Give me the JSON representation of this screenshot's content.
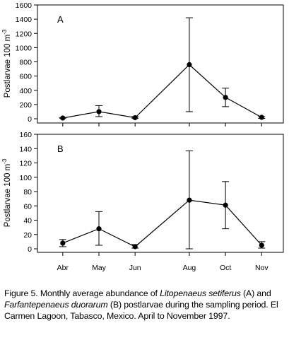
{
  "chart_data": [
    {
      "type": "line",
      "panel_label": "A",
      "ylabel_text": "Postlarvae 100 m",
      "ylabel_sup": "-3",
      "categories": [
        "Abr",
        "May",
        "Jun",
        "Aug",
        "Oct",
        "Nov"
      ],
      "x": [
        0,
        1,
        2,
        3.5,
        4.5,
        5.5
      ],
      "values": [
        10,
        100,
        15,
        760,
        300,
        20
      ],
      "error_low": [
        8,
        30,
        8,
        100,
        170,
        5
      ],
      "error_high": [
        15,
        185,
        30,
        1420,
        430,
        30
      ],
      "ylim": [
        0,
        1600
      ],
      "yticks": [
        0,
        200,
        400,
        600,
        800,
        1000,
        1200,
        1400,
        1600
      ],
      "xlim": [
        -0.7,
        6.1
      ],
      "show_xtick_labels": false,
      "grid": false
    },
    {
      "type": "line",
      "panel_label": "B",
      "ylabel_text": "Postlarvae 100 m",
      "ylabel_sup": "-3",
      "categories": [
        "Abr",
        "May",
        "Jun",
        "Aug",
        "Oct",
        "Nov"
      ],
      "x": [
        0,
        1,
        2,
        3.5,
        4.5,
        5.5
      ],
      "values": [
        8,
        28,
        3,
        68,
        61,
        5
      ],
      "error_low": [
        3,
        5,
        1,
        0,
        28,
        1
      ],
      "error_high": [
        13,
        52,
        6,
        137,
        94,
        10
      ],
      "ylim": [
        0,
        160
      ],
      "yticks": [
        0,
        20,
        40,
        60,
        80,
        100,
        120,
        140,
        160
      ],
      "xlim": [
        -0.7,
        6.1
      ],
      "show_xtick_labels": true,
      "grid": false
    }
  ],
  "caption": {
    "p1": "Figure 5. Monthly average abundance of ",
    "sp1": "Litopenaeus setiferus",
    "p2": " (A) and ",
    "sp2": "Farfantepenaeus duorarum",
    "p3": " (B) postlarvae during the sampling period. El Carmen Lagoon, Tabasco, Mexico. April to November 1997."
  },
  "colors": {
    "line": "#000000",
    "background": "#ffffff"
  }
}
